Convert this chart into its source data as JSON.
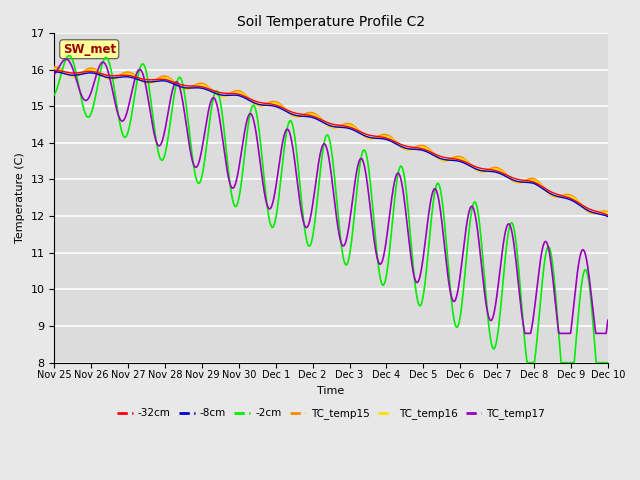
{
  "title": "Soil Temperature Profile C2",
  "xlabel": "Time",
  "ylabel": "Temperature (C)",
  "ylim": [
    8.0,
    17.0
  ],
  "yticks": [
    8.0,
    9.0,
    10.0,
    11.0,
    12.0,
    13.0,
    14.0,
    15.0,
    16.0,
    17.0
  ],
  "xtick_labels": [
    "Nov 25",
    "Nov 26",
    "Nov 27",
    "Nov 28",
    "Nov 29",
    "Nov 30",
    "Dec 1",
    "Dec 2",
    "Dec 3",
    "Dec 4",
    "Dec 5",
    "Dec 6",
    "Dec 7",
    "Dec 8",
    "Dec 9",
    "Dec 10"
  ],
  "legend_labels": [
    "-32cm",
    "-8cm",
    "-2cm",
    "TC_temp15",
    "TC_temp16",
    "TC_temp17"
  ],
  "legend_colors": [
    "#ff0000",
    "#0000cc",
    "#00ee00",
    "#ff8800",
    "#ffdd00",
    "#9900bb"
  ],
  "line_colors": {
    "neg32": "#ff0000",
    "neg8": "#0000cc",
    "neg2": "#00ee00",
    "tc15": "#ff8800",
    "tc16": "#ffdd00",
    "tc17": "#9900bb"
  },
  "fig_bg": "#e8e8e8",
  "plot_bg": "#dcdcdc",
  "annotation_text": "SW_met",
  "annotation_color": "#990000",
  "annotation_bg": "#ffff99",
  "n_points": 2000
}
